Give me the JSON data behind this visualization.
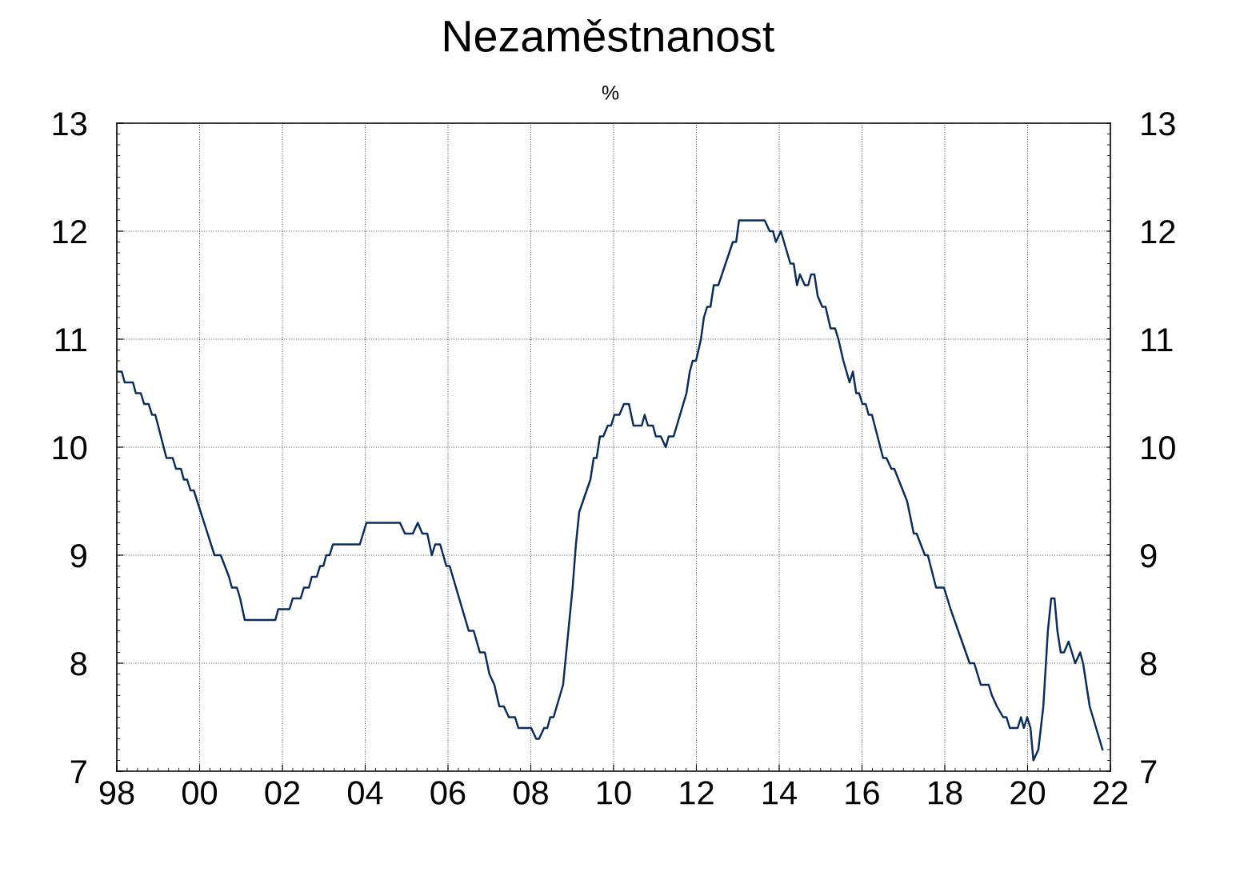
{
  "chart_data": {
    "type": "line",
    "title": "Nezaměstnanost",
    "subtitle": "%",
    "x": [
      1998.04,
      1998.12,
      1998.19,
      1998.39,
      1998.46,
      1998.58,
      1998.66,
      1998.77,
      1998.85,
      1998.93,
      1999.2,
      1999.35,
      1999.43,
      1999.55,
      1999.62,
      1999.7,
      1999.78,
      1999.86,
      2000.36,
      2000.51,
      2000.71,
      2000.78,
      2000.9,
      2000.98,
      2001.09,
      2001.83,
      2001.9,
      2002.17,
      2002.25,
      2002.44,
      2002.52,
      2002.64,
      2002.71,
      2002.83,
      2002.91,
      2002.99,
      2003.06,
      2003.14,
      2003.22,
      2003.87,
      2004.03,
      2004.84,
      2004.96,
      2005.15,
      2005.27,
      2005.38,
      2005.5,
      2005.61,
      2005.69,
      2005.81,
      2005.96,
      2006.04,
      2006.5,
      2006.62,
      2006.77,
      2006.89,
      2007.0,
      2007.12,
      2007.24,
      2007.35,
      2007.47,
      2007.62,
      2007.7,
      2008.01,
      2008.13,
      2008.2,
      2008.32,
      2008.4,
      2008.47,
      2008.55,
      2008.78,
      2009.01,
      2009.09,
      2009.17,
      2009.44,
      2009.52,
      2009.59,
      2009.67,
      2009.75,
      2009.86,
      2009.94,
      2010.02,
      2010.14,
      2010.25,
      2010.37,
      2010.48,
      2010.68,
      2010.75,
      2010.83,
      2010.95,
      2011.02,
      2011.14,
      2011.26,
      2011.33,
      2011.45,
      2011.76,
      2011.84,
      2011.91,
      2011.99,
      2012.11,
      2012.18,
      2012.26,
      2012.34,
      2012.42,
      2012.53,
      2012.88,
      2012.96,
      2013.03,
      2013.65,
      2013.77,
      2013.85,
      2013.92,
      2014.04,
      2014.27,
      2014.35,
      2014.43,
      2014.5,
      2014.62,
      2014.7,
      2014.77,
      2014.85,
      2014.93,
      2015.04,
      2015.12,
      2015.24,
      2015.35,
      2015.43,
      2015.55,
      2015.7,
      2015.78,
      2015.86,
      2015.93,
      2016.01,
      2016.09,
      2016.16,
      2016.24,
      2016.51,
      2016.59,
      2016.71,
      2016.78,
      2017.09,
      2017.25,
      2017.32,
      2017.52,
      2017.59,
      2017.79,
      2017.98,
      2018.14,
      2018.6,
      2018.71,
      2018.87,
      2019.06,
      2019.14,
      2019.26,
      2019.41,
      2019.49,
      2019.57,
      2019.76,
      2019.84,
      2019.91,
      2019.99,
      2020.07,
      2020.14,
      2020.26,
      2020.38,
      2020.49,
      2020.57,
      2020.65,
      2020.72,
      2020.8,
      2020.88,
      2020.99,
      2021.15,
      2021.27,
      2021.34,
      2021.5,
      2021.81
    ],
    "series": [
      {
        "color": "#0d2d5a",
        "values": [
          10.7,
          10.7,
          10.6,
          10.6,
          10.5,
          10.5,
          10.4,
          10.4,
          10.3,
          10.3,
          9.9,
          9.9,
          9.8,
          9.8,
          9.7,
          9.7,
          9.6,
          9.6,
          9.0,
          9.0,
          8.8,
          8.7,
          8.7,
          8.6,
          8.4,
          8.4,
          8.5,
          8.5,
          8.6,
          8.6,
          8.7,
          8.7,
          8.8,
          8.8,
          8.9,
          8.9,
          9.0,
          9.0,
          9.1,
          9.1,
          9.3,
          9.3,
          9.2,
          9.2,
          9.3,
          9.2,
          9.2,
          9.0,
          9.1,
          9.1,
          8.9,
          8.9,
          8.3,
          8.3,
          8.1,
          8.1,
          7.9,
          7.8,
          7.6,
          7.6,
          7.5,
          7.5,
          7.4,
          7.4,
          7.3,
          7.3,
          7.4,
          7.4,
          7.5,
          7.5,
          7.8,
          8.7,
          9.1,
          9.4,
          9.7,
          9.9,
          9.9,
          10.1,
          10.1,
          10.2,
          10.2,
          10.3,
          10.3,
          10.4,
          10.4,
          10.2,
          10.2,
          10.3,
          10.2,
          10.2,
          10.1,
          10.1,
          10.0,
          10.1,
          10.1,
          10.5,
          10.7,
          10.8,
          10.8,
          11.0,
          11.2,
          11.3,
          11.3,
          11.5,
          11.5,
          11.9,
          11.9,
          12.1,
          12.1,
          12.0,
          12.0,
          11.9,
          12.0,
          11.7,
          11.7,
          11.5,
          11.6,
          11.5,
          11.5,
          11.6,
          11.6,
          11.4,
          11.3,
          11.3,
          11.1,
          11.1,
          11.0,
          10.8,
          10.6,
          10.7,
          10.5,
          10.5,
          10.4,
          10.4,
          10.3,
          10.3,
          9.9,
          9.9,
          9.8,
          9.8,
          9.5,
          9.2,
          9.2,
          9.0,
          9.0,
          8.7,
          8.7,
          8.5,
          8.0,
          8.0,
          7.8,
          7.8,
          7.7,
          7.6,
          7.5,
          7.5,
          7.4,
          7.4,
          7.5,
          7.4,
          7.5,
          7.4,
          7.1,
          7.2,
          7.6,
          8.3,
          8.6,
          8.6,
          8.3,
          8.1,
          8.1,
          8.2,
          8.0,
          8.1,
          8.0,
          7.6,
          7.2
        ]
      }
    ],
    "xlim": [
      1998,
      2022
    ],
    "xticks": [
      {
        "value": 1998,
        "label": "98"
      },
      {
        "value": 2000,
        "label": "00"
      },
      {
        "value": 2002,
        "label": "02"
      },
      {
        "value": 2004,
        "label": "04"
      },
      {
        "value": 2006,
        "label": "06"
      },
      {
        "value": 2008,
        "label": "08"
      },
      {
        "value": 2010,
        "label": "10"
      },
      {
        "value": 2012,
        "label": "12"
      },
      {
        "value": 2014,
        "label": "14"
      },
      {
        "value": 2016,
        "label": "16"
      },
      {
        "value": 2018,
        "label": "18"
      },
      {
        "value": 2020,
        "label": "20"
      },
      {
        "value": 2022,
        "label": "22"
      }
    ],
    "ylim": [
      7,
      13
    ],
    "yticks": [
      7,
      8,
      9,
      10,
      11,
      12,
      13
    ],
    "y2lim": [
      7,
      13
    ],
    "y2ticks": [
      7,
      8,
      9,
      10,
      11,
      12,
      13
    ],
    "grid": true,
    "line_style": "solid",
    "marker": "none"
  }
}
